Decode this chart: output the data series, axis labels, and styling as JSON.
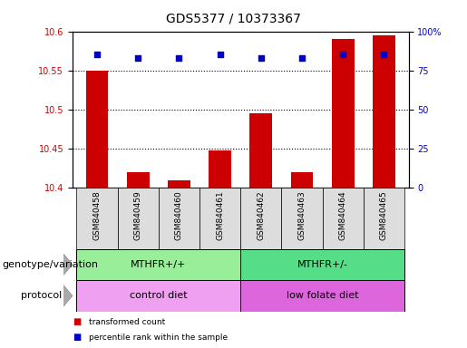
{
  "title": "GDS5377 / 10373367",
  "samples": [
    "GSM840458",
    "GSM840459",
    "GSM840460",
    "GSM840461",
    "GSM840462",
    "GSM840463",
    "GSM840464",
    "GSM840465"
  ],
  "transformed_count": [
    10.55,
    10.42,
    10.41,
    10.448,
    10.495,
    10.42,
    10.59,
    10.595
  ],
  "percentile_rank": [
    85,
    83,
    83,
    85,
    83,
    83,
    85,
    85
  ],
  "bar_color": "#cc0000",
  "dot_color": "#0000cc",
  "ylim_left": [
    10.4,
    10.6
  ],
  "ylim_right": [
    0,
    100
  ],
  "yticks_left": [
    10.4,
    10.45,
    10.5,
    10.55,
    10.6
  ],
  "yticks_right": [
    0,
    25,
    50,
    75,
    100
  ],
  "ylabel_left_color": "#cc0000",
  "ylabel_right_color": "#0000cc",
  "genotype_groups": [
    {
      "label": "MTHFR+/+",
      "start": 0,
      "end": 4,
      "color": "#99ee99"
    },
    {
      "label": "MTHFR+/-",
      "start": 4,
      "end": 8,
      "color": "#55dd88"
    }
  ],
  "protocol_groups": [
    {
      "label": "control diet",
      "start": 0,
      "end": 4,
      "color": "#f0a0f0"
    },
    {
      "label": "low folate diet",
      "start": 4,
      "end": 8,
      "color": "#dd66dd"
    }
  ],
  "genotype_label": "genotype/variation",
  "protocol_label": "protocol",
  "legend_items": [
    {
      "color": "#cc0000",
      "label": "transformed count"
    },
    {
      "color": "#0000cc",
      "label": "percentile rank within the sample"
    }
  ],
  "background_color": "#ffffff",
  "plot_bg_color": "#ffffff",
  "bar_bottom": 10.4,
  "bar_width": 0.55,
  "sample_box_color": "#dddddd",
  "title_fontsize": 10,
  "tick_fontsize": 7,
  "label_fontsize": 8,
  "row_label_fontsize": 8
}
